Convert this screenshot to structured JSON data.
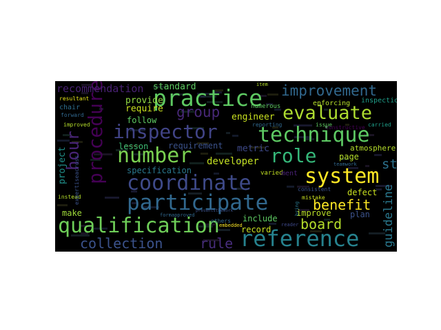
{
  "wordcloud": {
    "words": {
      "reference": {
        "text": "reference",
        "color": "#26828e"
      },
      "participate": {
        "text": "participate",
        "color": "#31688e"
      },
      "qualification": {
        "text": "qualification",
        "color": "#6ece58"
      },
      "coordinate": {
        "text": "coordinate",
        "color": "#3e4a89"
      },
      "technique": {
        "text": "technique",
        "color": "#5dc963"
      },
      "system": {
        "text": "system",
        "color": "#fde725"
      },
      "practice": {
        "text": "practice",
        "color": "#5ec962"
      },
      "evaluate": {
        "text": "evaluate",
        "color": "#addc30"
      },
      "inspector": {
        "text": "inspector",
        "color": "#414487"
      },
      "number": {
        "text": "number",
        "color": "#7ad151"
      },
      "procedure": {
        "text": "procedure",
        "color": "#440154"
      },
      "hour": {
        "text": "hour",
        "color": "#482475"
      },
      "role": {
        "text": "role",
        "color": "#35b779"
      },
      "improvement": {
        "text": "improvement",
        "color": "#31688e"
      },
      "group": {
        "text": "group",
        "color": "#482878"
      },
      "collection": {
        "text": "collection",
        "color": "#3b528b"
      },
      "rule": {
        "text": "rule",
        "color": "#472d7b"
      },
      "board": {
        "text": "board",
        "color": "#b5de2b"
      },
      "benefit": {
        "text": "benefit",
        "color": "#fde725"
      },
      "std": {
        "text": "std",
        "color": "#2c728e"
      },
      "guideline": {
        "text": "guideline",
        "color": "#2a788e"
      },
      "recommendation": {
        "text": "recommendation",
        "color": "#482173"
      },
      "standard": {
        "text": "standard",
        "color": "#5ec962"
      },
      "provide": {
        "text": "provide",
        "color": "#90d743"
      },
      "require": {
        "text": "require",
        "color": "#cae11f"
      },
      "follow": {
        "text": "follow",
        "color": "#5ec962"
      },
      "lesson": {
        "text": "lesson",
        "color": "#3dbc74"
      },
      "requirement": {
        "text": "requirement",
        "color": "#3b528b"
      },
      "specification": {
        "text": "specification",
        "color": "#2a788e"
      },
      "engineer": {
        "text": "engineer",
        "color": "#c8e020"
      },
      "metric": {
        "text": "metric",
        "color": "#3e4989"
      },
      "developer": {
        "text": "developer",
        "color": "#c2df23"
      },
      "project": {
        "text": "project",
        "color": "#21918c"
      },
      "include": {
        "text": "include",
        "color": "#5ec962"
      },
      "record": {
        "text": "record",
        "color": "#c8e020"
      },
      "improve": {
        "text": "improve",
        "color": "#b8de29"
      },
      "plan": {
        "text": "plan",
        "color": "#3b528b"
      },
      "defect": {
        "text": "defect",
        "color": "#c8e020"
      },
      "page": {
        "text": "page",
        "color": "#b5de2b"
      },
      "make": {
        "text": "make",
        "color": "#9fda3a"
      },
      "atmosphere": {
        "text": "atmosphere",
        "color": "#b5de2b"
      },
      "inspection": {
        "text": "inspection",
        "color": "#1f9e89"
      },
      "enforcing": {
        "text": "enforcing",
        "color": "#b5de2b"
      },
      "chair": {
        "text": "chair",
        "color": "#2e6e8e"
      },
      "resultant": {
        "text": "resultant",
        "color": "#e5e419"
      },
      "forward": {
        "text": "forward",
        "color": "#31688e"
      },
      "improved": {
        "text": "improved",
        "color": "#b5de2b"
      },
      "instead": {
        "text": "instead",
        "color": "#b5de2b"
      },
      "others": {
        "text": "others",
        "color": "#31688e"
      },
      "varied": {
        "text": "varied",
        "color": "#c2df23"
      },
      "consistent": {
        "text": "consistent",
        "color": "#3b528b"
      },
      "mistake": {
        "text": "mistake",
        "color": "#c8e020"
      },
      "reader": {
        "text": "reader",
        "color": "#3e4989"
      },
      "numerous": {
        "text": "numerous",
        "color": "#5ec962"
      },
      "reporting": {
        "text": "reporting",
        "color": "#31688e"
      },
      "issue": {
        "text": "issue",
        "color": "#5ec962"
      },
      "carried": {
        "text": "carried",
        "color": "#1f9e89"
      },
      "teamwork": {
        "text": "teamwork",
        "color": "#31688e"
      },
      "constructive": {
        "text": "constructive",
        "color": "#440154"
      },
      "embedded": {
        "text": "embedded",
        "color": "#fde725"
      },
      "item": {
        "text": "item",
        "color": "#b5de2b"
      },
      "expertiseacross": {
        "text": "expertiseacross",
        "color": "#3b528b"
      },
      "formapproved": {
        "text": "formapproved",
        "color": "#31688e"
      },
      "presentsthework": {
        "text": "presentsthework",
        "color": "#3b528b"
      },
      "bring": {
        "text": "bring",
        "color": "#2a788e"
      },
      "ment": {
        "text": "ment",
        "color": "#482173"
      }
    }
  }
}
